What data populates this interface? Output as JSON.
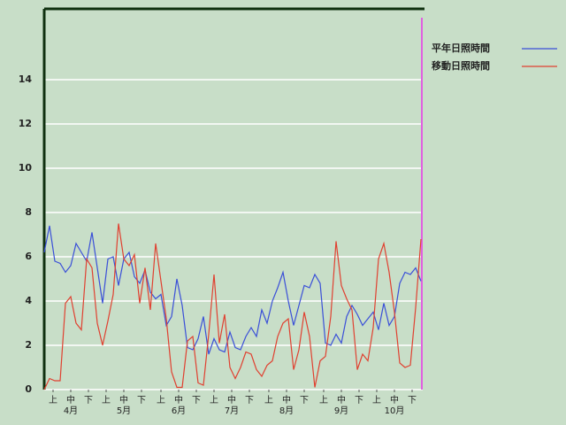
{
  "chart_data": {
    "type": "line",
    "xlim": [
      0,
      214
    ],
    "ylim": [
      0,
      17.2
    ],
    "yticks": [
      0,
      2,
      4,
      6,
      8,
      10,
      12,
      14
    ],
    "grid": true,
    "xticks": [
      {
        "value": 5,
        "label": "上"
      },
      {
        "value": 15,
        "label": "中"
      },
      {
        "value": 25,
        "label": "下"
      },
      {
        "value": 35,
        "label": "上"
      },
      {
        "value": 45,
        "label": "中"
      },
      {
        "value": 55,
        "label": "下"
      },
      {
        "value": 66,
        "label": "上"
      },
      {
        "value": 76,
        "label": "中"
      },
      {
        "value": 86,
        "label": "下"
      },
      {
        "value": 96,
        "label": "上"
      },
      {
        "value": 106,
        "label": "中"
      },
      {
        "value": 116,
        "label": "下"
      },
      {
        "value": 127,
        "label": "上"
      },
      {
        "value": 137,
        "label": "中"
      },
      {
        "value": 147,
        "label": "下"
      },
      {
        "value": 158,
        "label": "上"
      },
      {
        "value": 168,
        "label": "中"
      },
      {
        "value": 178,
        "label": "下"
      },
      {
        "value": 188,
        "label": "上"
      },
      {
        "value": 198,
        "label": "中"
      },
      {
        "value": 208,
        "label": "下"
      }
    ],
    "month_labels": [
      {
        "value": 15,
        "label": "4月"
      },
      {
        "value": 45,
        "label": "5月"
      },
      {
        "value": 76,
        "label": "6月"
      },
      {
        "value": 106,
        "label": "7月"
      },
      {
        "value": 137,
        "label": "8月"
      },
      {
        "value": 168,
        "label": "9月"
      },
      {
        "value": 198,
        "label": "10月"
      }
    ],
    "marker_x": 213.5,
    "marker_color": "#e060e0",
    "x": [
      0,
      3,
      6,
      9,
      12,
      15,
      18,
      21,
      24,
      27,
      30,
      33,
      36,
      39,
      42,
      45,
      48,
      51,
      54,
      57,
      60,
      63,
      66,
      69,
      72,
      75,
      78,
      81,
      84,
      87,
      90,
      93,
      96,
      99,
      102,
      105,
      108,
      111,
      114,
      117,
      120,
      123,
      126,
      129,
      132,
      135,
      138,
      141,
      144,
      147,
      150,
      153,
      156,
      159,
      162,
      165,
      168,
      171,
      174,
      177,
      180,
      183,
      186,
      189,
      192,
      195,
      198,
      201,
      204,
      207,
      210,
      213
    ],
    "series": [
      {
        "name": "平年日照時間",
        "color": "#3a4fd8",
        "values": [
          6.2,
          7.4,
          5.8,
          5.7,
          5.3,
          5.6,
          6.6,
          6.2,
          5.8,
          7.1,
          5.5,
          3.9,
          5.9,
          6.0,
          4.7,
          5.9,
          6.2,
          5.1,
          4.8,
          5.4,
          4.4,
          4.1,
          4.3,
          2.9,
          3.3,
          5.0,
          3.8,
          1.9,
          1.8,
          2.3,
          3.3,
          1.6,
          2.3,
          1.8,
          1.7,
          2.6,
          1.9,
          1.8,
          2.4,
          2.8,
          2.4,
          3.6,
          3.0,
          4.0,
          4.6,
          5.3,
          4.0,
          2.9,
          3.8,
          4.7,
          4.6,
          5.2,
          4.8,
          2.1,
          2.0,
          2.5,
          2.1,
          3.3,
          3.8,
          3.4,
          2.9,
          3.2,
          3.5,
          2.7,
          3.9,
          2.9,
          3.3,
          4.8,
          5.3,
          5.2,
          5.5,
          4.9
        ]
      },
      {
        "name": "移動日照時間",
        "color": "#e04030",
        "values": [
          0,
          0.5,
          0.4,
          0.4,
          3.9,
          4.2,
          3.0,
          2.7,
          5.9,
          5.5,
          3.0,
          2.0,
          3.1,
          4.3,
          7.5,
          5.9,
          5.6,
          6.1,
          3.9,
          5.5,
          3.6,
          6.6,
          4.9,
          3.2,
          0.8,
          0.1,
          0.1,
          2.2,
          2.4,
          0.3,
          0.2,
          2.5,
          5.2,
          2.1,
          3.4,
          1.0,
          0.5,
          1.0,
          1.7,
          1.6,
          0.9,
          0.6,
          1.1,
          1.3,
          2.4,
          3.0,
          3.2,
          0.9,
          1.8,
          3.5,
          2.4,
          0.1,
          1.3,
          1.5,
          3.3,
          6.7,
          4.7,
          4.1,
          3.6,
          0.9,
          1.6,
          1.3,
          2.8,
          5.9,
          6.6,
          5.3,
          3.5,
          1.2,
          1.0,
          1.1,
          3.7,
          6.8
        ]
      }
    ]
  }
}
